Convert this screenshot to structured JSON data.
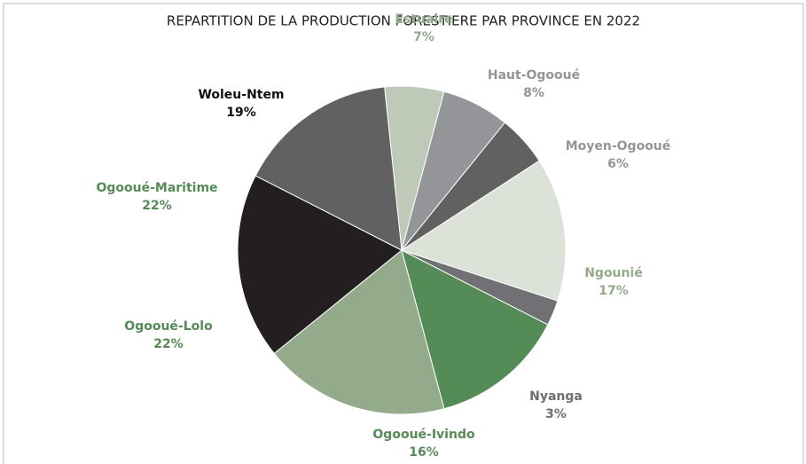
{
  "chart_data": {
    "type": "pie",
    "title": "REPARTITION DE LA PRODUCTION FORESTIERE PAR PROVINCE EN 2022",
    "categories": [
      "Estuaire",
      "Haut-Ogooué",
      "Moyen-Ogooué",
      "Ngounié",
      "Nyanga",
      "Ogooué-Ivindo",
      "Ogooué-Lolo",
      "Ogooué-Maritime",
      "Woleu-Ntem"
    ],
    "values": [
      7,
      8,
      6,
      17,
      3,
      16,
      22,
      22,
      19
    ],
    "value_labels": [
      "7%",
      "8%",
      "6%",
      "17%",
      "3%",
      "16%",
      "22%",
      "22%",
      "19%"
    ],
    "colors": [
      "#bfc9b8",
      "#939598",
      "#616161",
      "#dde2d8",
      "#707174",
      "#558b57",
      "#93aa8b",
      "#231f20",
      "#616161"
    ],
    "label_colors": [
      "#93aa8b",
      "#939598",
      "#939598",
      "#93aa8b",
      "#6d6e71",
      "#558b57",
      "#558b57",
      "#558b57",
      "#111111"
    ]
  }
}
